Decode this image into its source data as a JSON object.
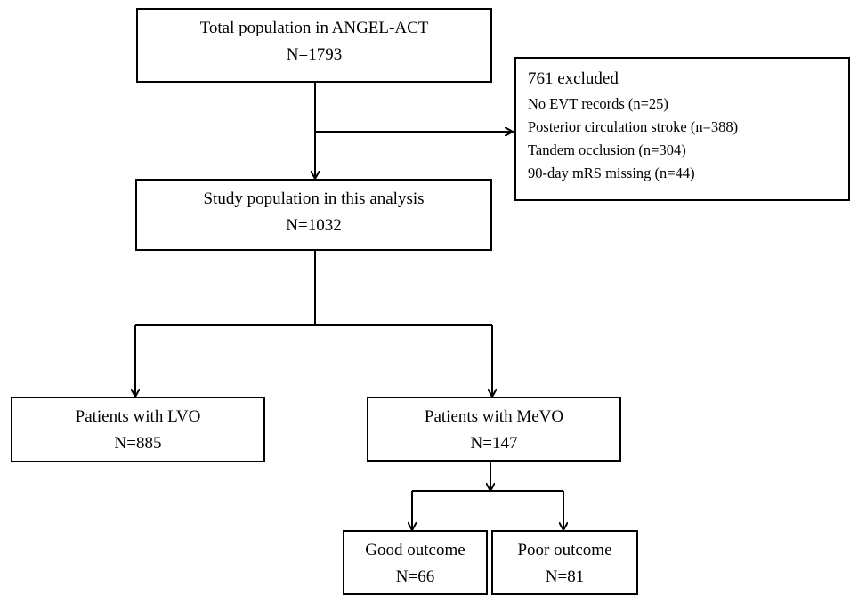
{
  "boxes": {
    "total": {
      "line1": "Total population in ANGEL-ACT",
      "line2": "N=1793"
    },
    "excluded": {
      "title": "761 excluded",
      "items": [
        "No EVT records (n=25)",
        "Posterior circulation stroke (n=388)",
        "Tandem occlusion (n=304)",
        "90-day mRS missing (n=44)"
      ]
    },
    "study": {
      "line1": "Study population in this analysis",
      "line2": "N=1032"
    },
    "lvo": {
      "line1": "Patients with LVO",
      "line2": "N=885"
    },
    "mevo": {
      "line1": "Patients with MeVO",
      "line2": "N=147"
    },
    "good": {
      "line1": "Good outcome",
      "line2": "N=66"
    },
    "poor": {
      "line1": "Poor outcome",
      "line2": "N=81"
    }
  }
}
